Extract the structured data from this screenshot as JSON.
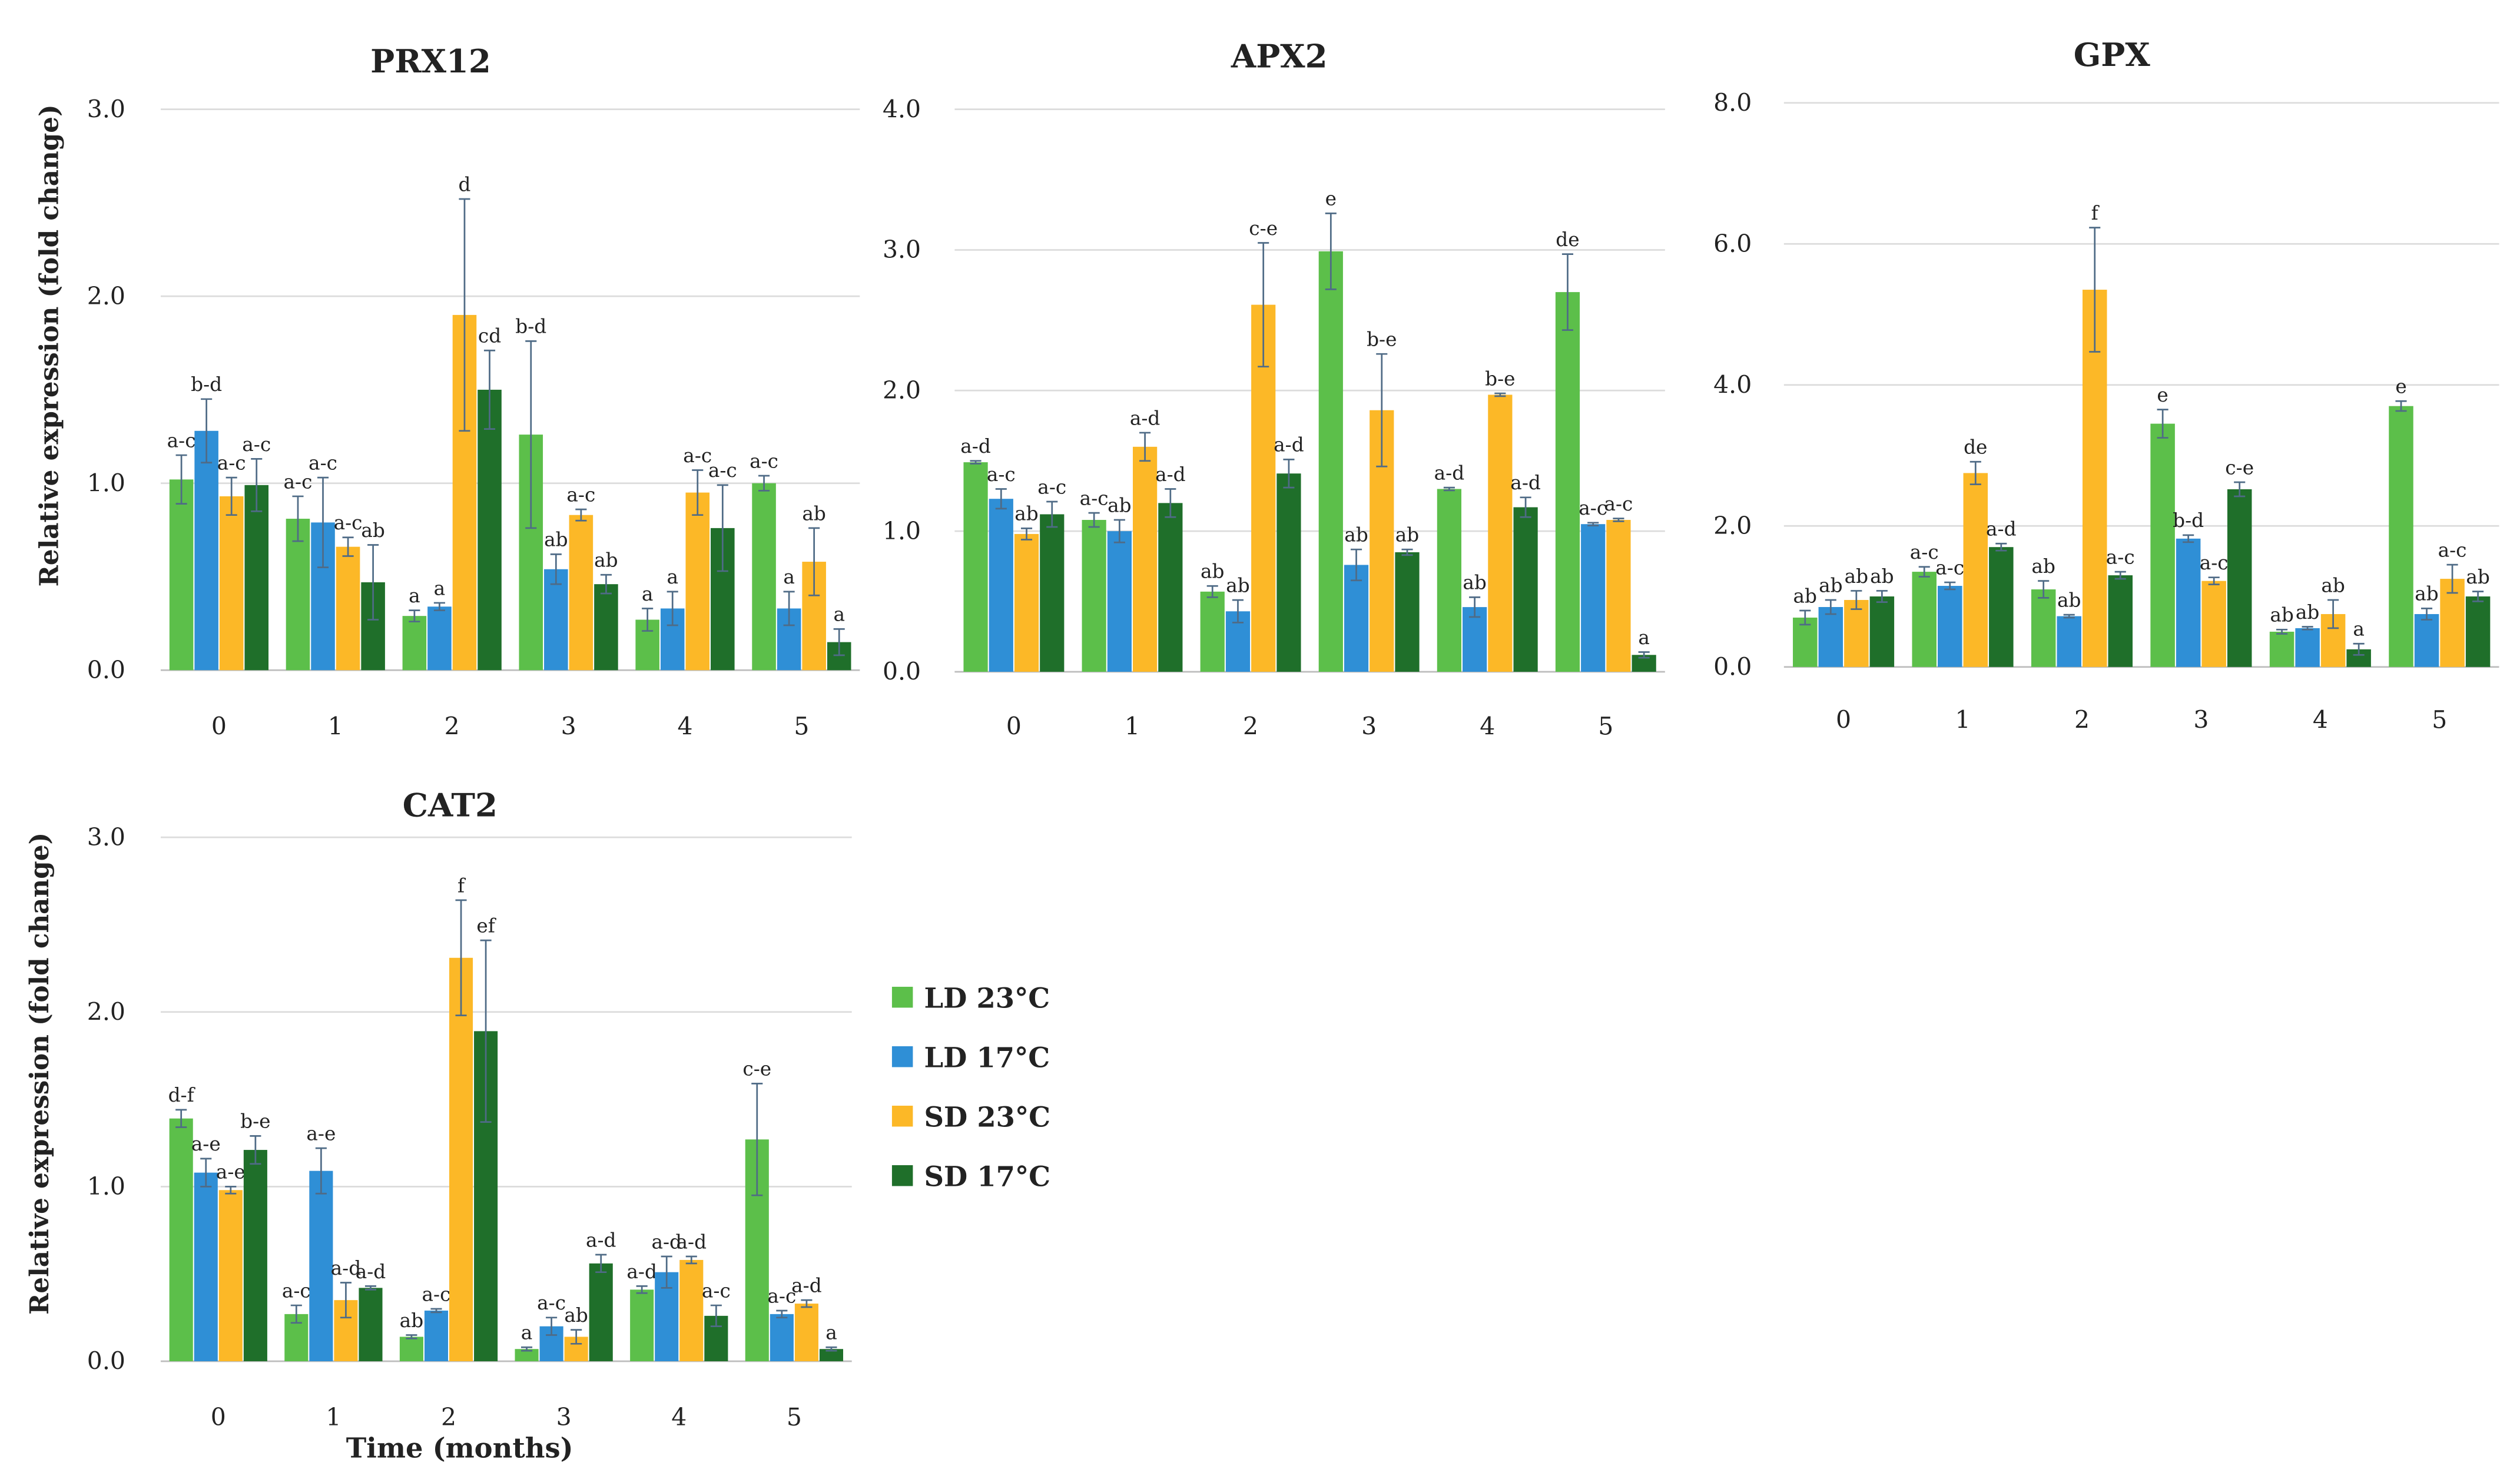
{
  "colors": {
    "LD 23°C": "#5cbf4a",
    "LD 17°C": "#2f8fd6",
    "SD 23°C": "#fcb827",
    "SD 17°C": "#1f6f2a"
  },
  "legend": [
    "LD 23°C",
    "LD 17°C",
    "SD 23°C",
    "SD 17°C"
  ],
  "chart_data": [
    {
      "type": "bar",
      "title": "PRX12",
      "ylabel": "Relative expression (fold change)",
      "xlabel": "",
      "categories": [
        "0",
        "1",
        "2",
        "3",
        "4",
        "5"
      ],
      "ylim": [
        0,
        3
      ],
      "yticks": [
        "0.0",
        "1.0",
        "2.0",
        "3.0"
      ],
      "grid": true,
      "series": [
        {
          "name": "LD 23°C",
          "values": [
            1.02,
            0.81,
            0.29,
            1.26,
            0.27,
            1.0
          ],
          "errors": [
            0.13,
            0.12,
            0.03,
            0.5,
            0.06,
            0.04
          ],
          "labels": [
            "a-c",
            "a-c",
            "a",
            "b-d",
            "a",
            "a-c"
          ]
        },
        {
          "name": "LD 17°C",
          "values": [
            1.28,
            0.79,
            0.34,
            0.54,
            0.33,
            0.33
          ],
          "errors": [
            0.17,
            0.24,
            0.02,
            0.08,
            0.09,
            0.09
          ],
          "labels": [
            "b-d",
            "a-c",
            "a",
            "ab",
            "a",
            "a"
          ]
        },
        {
          "name": "SD 23°C",
          "values": [
            0.93,
            0.66,
            1.9,
            0.83,
            0.95,
            0.58
          ],
          "errors": [
            0.1,
            0.05,
            0.62,
            0.03,
            0.12,
            0.18
          ],
          "labels": [
            "a-c",
            "a-c",
            "d",
            "a-c",
            "a-c",
            "ab"
          ]
        },
        {
          "name": "SD 17°C",
          "values": [
            0.99,
            0.47,
            1.5,
            0.46,
            0.76,
            0.15
          ],
          "errors": [
            0.14,
            0.2,
            0.21,
            0.05,
            0.23,
            0.07
          ],
          "labels": [
            "a-c",
            "ab",
            "cd",
            "ab",
            "a-c",
            "a"
          ]
        }
      ]
    },
    {
      "type": "bar",
      "title": "APX2",
      "ylabel": "",
      "xlabel": "",
      "categories": [
        "0",
        "1",
        "2",
        "3",
        "4",
        "5"
      ],
      "ylim": [
        0,
        4
      ],
      "yticks": [
        "0.0",
        "1.0",
        "2.0",
        "3.0",
        "4.0"
      ],
      "grid": true,
      "series": [
        {
          "name": "LD 23°C",
          "values": [
            1.49,
            1.08,
            0.57,
            2.99,
            1.3,
            2.7
          ],
          "errors": [
            0.01,
            0.05,
            0.04,
            0.27,
            0.01,
            0.27
          ],
          "labels": [
            "a-d",
            "a-c",
            "ab",
            "e",
            "a-d",
            "de"
          ]
        },
        {
          "name": "LD 17°C",
          "values": [
            1.23,
            1.0,
            0.43,
            0.76,
            0.46,
            1.05
          ],
          "errors": [
            0.07,
            0.08,
            0.08,
            0.11,
            0.07,
            0.01
          ],
          "labels": [
            "a-c",
            "ab",
            "ab",
            "ab",
            "ab",
            "a-c"
          ]
        },
        {
          "name": "SD 23°C",
          "values": [
            0.98,
            1.6,
            2.61,
            1.86,
            1.97,
            1.08
          ],
          "errors": [
            0.04,
            0.1,
            0.44,
            0.4,
            0.01,
            0.01
          ],
          "labels": [
            "ab",
            "a-d",
            "c-e",
            "b-e",
            "b-e",
            "a-c"
          ]
        },
        {
          "name": "SD 17°C",
          "values": [
            1.12,
            1.2,
            1.41,
            0.85,
            1.17,
            0.12
          ],
          "errors": [
            0.09,
            0.1,
            0.1,
            0.02,
            0.07,
            0.02
          ],
          "labels": [
            "a-c",
            "a-d",
            "a-d",
            "ab",
            "a-d",
            "a"
          ]
        }
      ]
    },
    {
      "type": "bar",
      "title": "GPX",
      "ylabel": "",
      "xlabel": "",
      "categories": [
        "0",
        "1",
        "2",
        "3",
        "4",
        "5"
      ],
      "ylim": [
        0,
        8
      ],
      "yticks": [
        "0.0",
        "2.0",
        "4.0",
        "6.0",
        "8.0"
      ],
      "grid": true,
      "series": [
        {
          "name": "LD 23°C",
          "values": [
            0.7,
            1.35,
            1.1,
            3.45,
            0.5,
            3.7
          ],
          "errors": [
            0.1,
            0.07,
            0.12,
            0.2,
            0.03,
            0.07
          ],
          "labels": [
            "ab",
            "a-c",
            "ab",
            "e",
            "ab",
            "e"
          ]
        },
        {
          "name": "LD 17°C",
          "values": [
            0.85,
            1.15,
            0.72,
            1.82,
            0.55,
            0.75
          ],
          "errors": [
            0.1,
            0.05,
            0.02,
            0.05,
            0.02,
            0.08
          ],
          "labels": [
            "ab",
            "a-c",
            "ab",
            "b-d",
            "ab",
            "ab"
          ]
        },
        {
          "name": "SD 23°C",
          "values": [
            0.95,
            2.75,
            5.35,
            1.22,
            0.75,
            1.25
          ],
          "errors": [
            0.13,
            0.16,
            0.88,
            0.05,
            0.2,
            0.2
          ],
          "labels": [
            "ab",
            "de",
            "f",
            "a-c",
            "ab",
            "a-c"
          ]
        },
        {
          "name": "SD 17°C",
          "values": [
            1.0,
            1.7,
            1.3,
            2.52,
            0.25,
            1.0
          ],
          "errors": [
            0.08,
            0.05,
            0.05,
            0.1,
            0.08,
            0.07
          ],
          "labels": [
            "ab",
            "a-d",
            "a-c",
            "c-e",
            "a",
            "ab"
          ]
        }
      ]
    },
    {
      "type": "bar",
      "title": "CAT2",
      "ylabel": "Relative expression (fold change)",
      "xlabel": "Time (months)",
      "categories": [
        "0",
        "1",
        "2",
        "3",
        "4",
        "5"
      ],
      "ylim": [
        0,
        3
      ],
      "yticks": [
        "0.0",
        "1.0",
        "2.0",
        "3.0"
      ],
      "grid": true,
      "series": [
        {
          "name": "LD 23°C",
          "values": [
            1.39,
            0.27,
            0.14,
            0.07,
            0.41,
            1.27
          ],
          "errors": [
            0.05,
            0.05,
            0.01,
            0.01,
            0.02,
            0.32
          ],
          "labels": [
            "d-f",
            "a-c",
            "ab",
            "a",
            "a-d",
            "c-e"
          ]
        },
        {
          "name": "LD 17°C",
          "values": [
            1.08,
            1.09,
            0.29,
            0.2,
            0.51,
            0.27
          ],
          "errors": [
            0.08,
            0.13,
            0.01,
            0.05,
            0.09,
            0.02
          ],
          "labels": [
            "a-e",
            "a-e",
            "a-c",
            "a-c",
            "a-d",
            "a-c"
          ]
        },
        {
          "name": "SD 23°C",
          "values": [
            0.98,
            0.35,
            2.31,
            0.14,
            0.58,
            0.33
          ],
          "errors": [
            0.02,
            0.1,
            0.33,
            0.04,
            0.02,
            0.02
          ],
          "labels": [
            "a-e",
            "a-d",
            "f",
            "ab",
            "a-d",
            "a-d"
          ]
        },
        {
          "name": "SD 17°C",
          "values": [
            1.21,
            0.42,
            1.89,
            0.56,
            0.26,
            0.07
          ],
          "errors": [
            0.08,
            0.01,
            0.52,
            0.05,
            0.06,
            0.01
          ],
          "labels": [
            "b-e",
            "a-d",
            "ef",
            "a-d",
            "a-c",
            "a"
          ]
        }
      ]
    }
  ]
}
